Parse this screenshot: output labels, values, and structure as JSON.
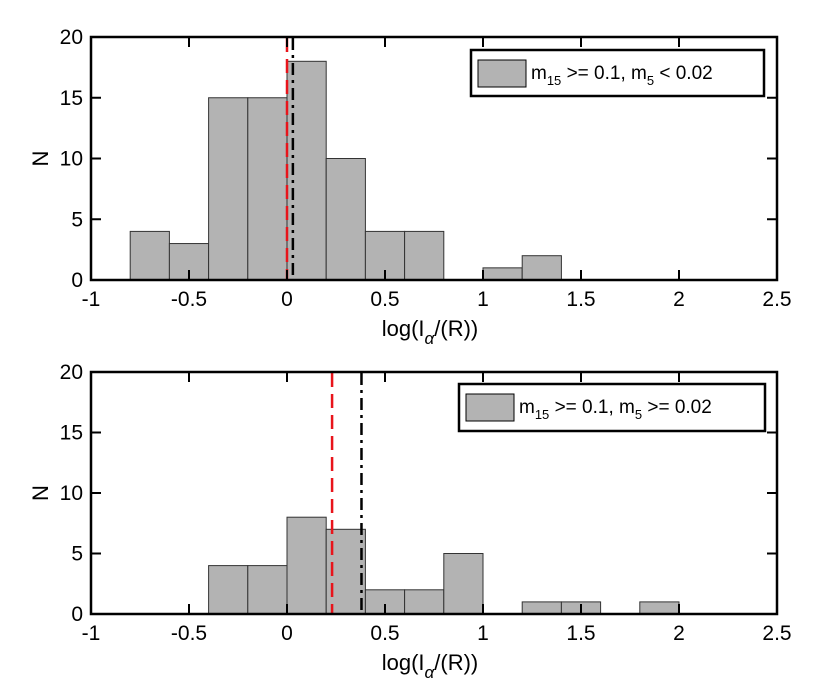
{
  "chart_data": [
    {
      "type": "bar",
      "histogram": true,
      "bin_edges": [
        -0.8,
        -0.6,
        -0.4,
        -0.2,
        0.0,
        0.2,
        0.4,
        0.6,
        0.8,
        1.0,
        1.2,
        1.4
      ],
      "values": [
        4,
        3,
        15,
        15,
        18,
        10,
        4,
        4,
        0,
        1,
        2
      ],
      "xlim": [
        -1,
        2.5
      ],
      "ylim": [
        0,
        20
      ],
      "xticks": [
        -1,
        -0.5,
        0,
        0.5,
        1,
        1.5,
        2,
        2.5
      ],
      "xtick_labels": [
        "-1",
        "-0.5",
        "0",
        "0.5",
        "1",
        "1.5",
        "2",
        "2.5"
      ],
      "yticks": [
        0,
        5,
        10,
        15,
        20
      ],
      "ytick_labels": [
        "0",
        "5",
        "10",
        "15",
        "20"
      ],
      "xlabel_main": "log(I",
      "xlabel_sub": "α",
      "xlabel_tail": "/(R))",
      "ylabel": "N",
      "vlines": [
        {
          "x": 0.0,
          "style": "dashed",
          "color": "#e8141b"
        },
        {
          "x": 0.03,
          "style": "dashdot",
          "color": "#000000"
        }
      ],
      "legend": {
        "position": "top-right",
        "m1": "m",
        "s1": "15",
        "mid": " >= 0.1, m",
        "s2": "5",
        "tail": " < 0.02"
      },
      "bar_color": "#b3b3b3"
    },
    {
      "type": "bar",
      "histogram": true,
      "bin_edges": [
        -0.4,
        -0.2,
        0.0,
        0.2,
        0.4,
        0.6,
        0.8,
        1.0,
        1.2,
        1.4,
        1.6,
        1.8,
        2.0
      ],
      "values": [
        4,
        4,
        8,
        7,
        2,
        2,
        5,
        0,
        1,
        1,
        0,
        1
      ],
      "xlim": [
        -1,
        2.5
      ],
      "ylim": [
        0,
        20
      ],
      "xticks": [
        -1,
        -0.5,
        0,
        0.5,
        1,
        1.5,
        2,
        2.5
      ],
      "xtick_labels": [
        "-1",
        "-0.5",
        "0",
        "0.5",
        "1",
        "1.5",
        "2",
        "2.5"
      ],
      "yticks": [
        0,
        5,
        10,
        15,
        20
      ],
      "ytick_labels": [
        "0",
        "5",
        "10",
        "15",
        "20"
      ],
      "xlabel_main": "log(I",
      "xlabel_sub": "α",
      "xlabel_tail": "/(R))",
      "ylabel": "N",
      "vlines": [
        {
          "x": 0.23,
          "style": "dashed",
          "color": "#e8141b"
        },
        {
          "x": 0.38,
          "style": "dashdot",
          "color": "#000000"
        }
      ],
      "legend": {
        "position": "top-right",
        "m1": "m",
        "s1": "15",
        "mid": " >= 0.1, m",
        "s2": "5",
        "tail": " >= 0.02"
      },
      "bar_color": "#b3b3b3"
    }
  ]
}
